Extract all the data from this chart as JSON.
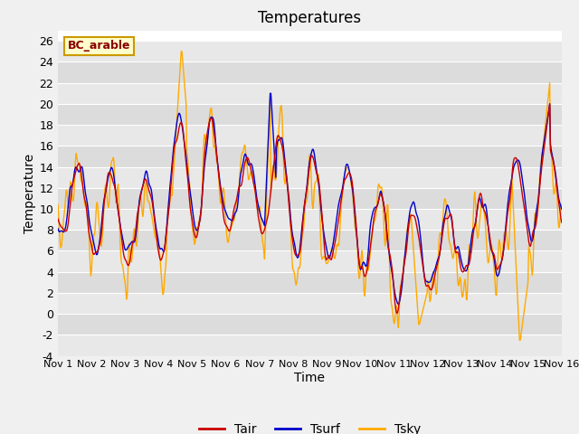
{
  "title": "Temperatures",
  "xlabel": "Time",
  "ylabel": "Temperature",
  "ylim": [
    -4,
    27
  ],
  "yticks": [
    -4,
    -2,
    0,
    2,
    4,
    6,
    8,
    10,
    12,
    14,
    16,
    18,
    20,
    22,
    24,
    26
  ],
  "xtick_labels": [
    "Nov 1",
    "Nov 2",
    "Nov 3",
    "Nov 4",
    "Nov 5",
    "Nov 6",
    "Nov 7",
    "Nov 8",
    "Nov 9",
    "Nov 10",
    "Nov 11",
    "Nov 12",
    "Nov 13",
    "Nov 14",
    "Nov 15",
    "Nov 16"
  ],
  "line_colors": {
    "Tair": "#cc0000",
    "Tsurf": "#0000cc",
    "Tsky": "#ffaa00"
  },
  "legend_label": "BC_arable",
  "legend_bg": "#ffffcc",
  "legend_border": "#cc9900",
  "fig_bg": "#f0f0f0",
  "plot_bg": "#dcdcdc",
  "alt_bg": "#e8e8e8",
  "grid_color": "#ffffff",
  "n_days": 15,
  "pts_per_day": 48
}
